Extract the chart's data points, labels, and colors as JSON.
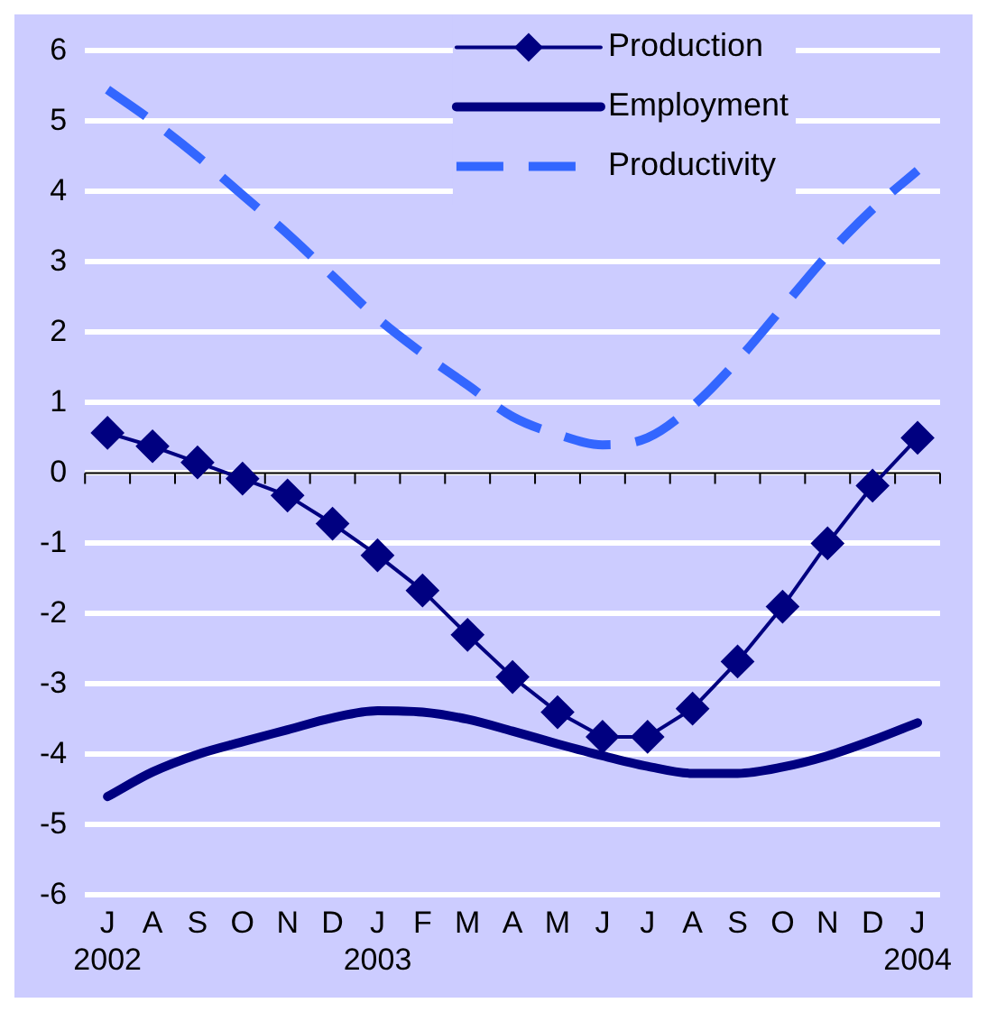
{
  "chart_data": {
    "type": "line",
    "categories": [
      "J\n2002",
      "A",
      "S",
      "O",
      "N",
      "D",
      "J\n2003",
      "F",
      "M",
      "A",
      "M",
      "J",
      "J",
      "A",
      "S",
      "O",
      "N",
      "D",
      "J\n2004"
    ],
    "series": [
      {
        "name": "Production",
        "color": "#000080",
        "marker": "diamond",
        "line_style": "solid",
        "values": [
          0.57,
          0.38,
          0.15,
          -0.08,
          -0.32,
          -0.72,
          -1.17,
          -1.67,
          -2.3,
          -2.9,
          -3.4,
          -3.75,
          -3.75,
          -3.35,
          -2.68,
          -1.9,
          -1.0,
          -0.18,
          0.5
        ]
      },
      {
        "name": "Employment",
        "color": "#000080",
        "marker": "none",
        "line_style": "solid",
        "values": [
          -4.6,
          -4.25,
          -4.0,
          -3.82,
          -3.65,
          -3.48,
          -3.38,
          -3.4,
          -3.5,
          -3.67,
          -3.85,
          -4.02,
          -4.17,
          -4.27,
          -4.27,
          -4.18,
          -4.02,
          -3.8,
          -3.55
        ]
      },
      {
        "name": "Productivity",
        "color": "#3366ff",
        "marker": "none",
        "line_style": "dashed",
        "values": [
          5.45,
          5.0,
          4.5,
          3.95,
          3.4,
          2.8,
          2.2,
          1.7,
          1.25,
          0.8,
          0.55,
          0.4,
          0.5,
          0.95,
          1.6,
          2.35,
          3.1,
          3.75,
          4.3
        ]
      }
    ],
    "ylim": [
      -6,
      6
    ],
    "yticks": [
      -6,
      -5,
      -4,
      -3,
      -2,
      -1,
      0,
      1,
      2,
      3,
      4,
      5,
      6
    ],
    "grid": "y",
    "legend": "top right"
  }
}
